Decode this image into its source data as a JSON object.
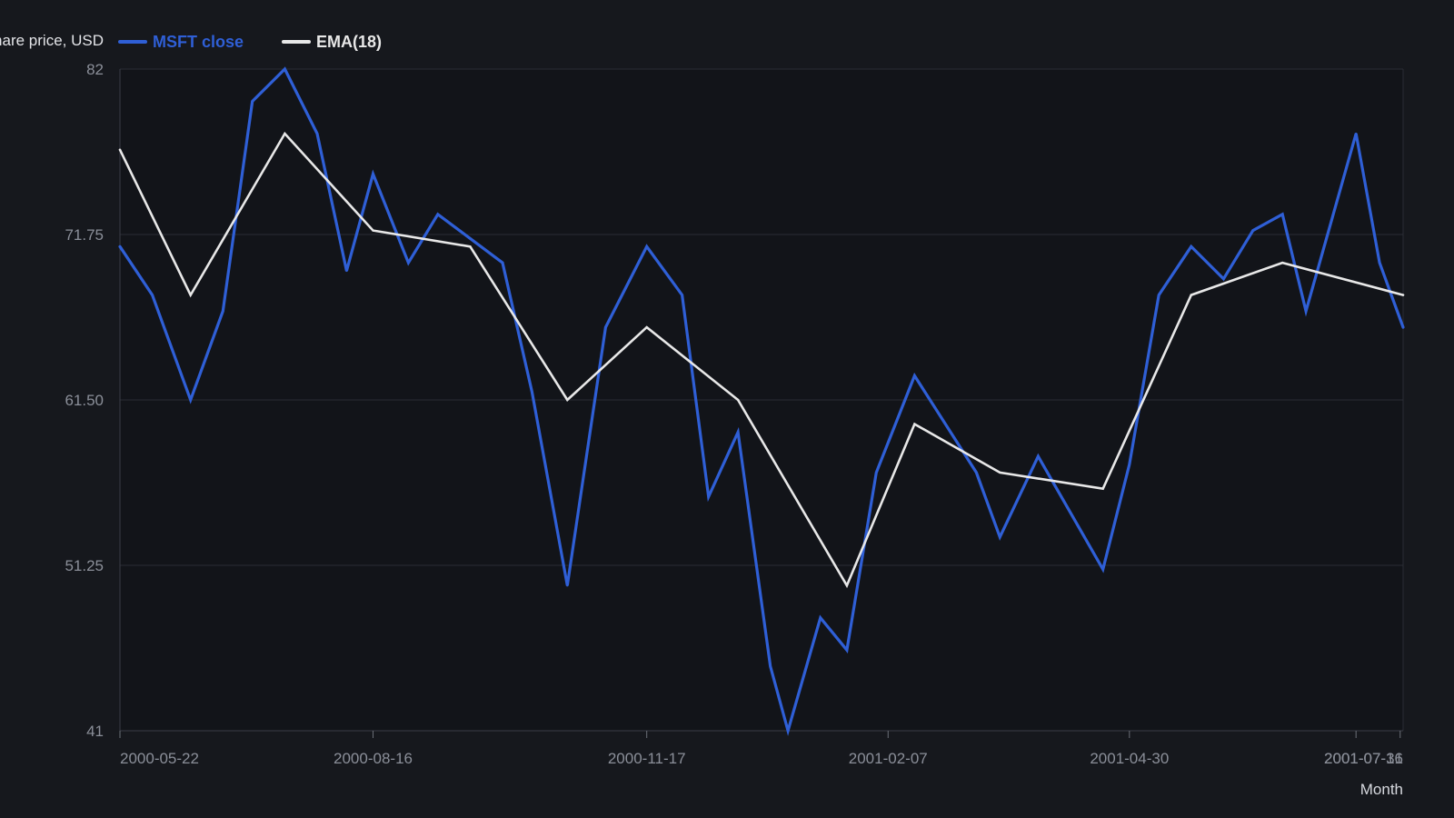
{
  "chart_data": {
    "type": "line",
    "ylabel": "Share price, USD",
    "xlabel": "Month",
    "ylim": [
      41,
      82
    ],
    "yticks": [
      "41",
      "51.25",
      "61.50",
      "71.75",
      "82"
    ],
    "xticks": [
      {
        "date": "2000-05-22",
        "label": "2000-05-22"
      },
      {
        "date": "2000-08-16",
        "label": "2000-08-16"
      },
      {
        "date": "2000-11-17",
        "label": "2000-11-17"
      },
      {
        "date": "2001-02-07",
        "label": "2001-02-07"
      },
      {
        "date": "2001-04-30",
        "label": "2001-04-30"
      },
      {
        "date": "2001-07-16",
        "label": "2001-07-16"
      },
      {
        "date": "2001-07-31",
        "label": "2001-07-31"
      }
    ],
    "xlim": [
      "2000-05-22",
      "2001-08-01"
    ],
    "legend_position": "top-left",
    "grid": true,
    "series": [
      {
        "name": "MSFT close",
        "color": "#2f5fd6",
        "points": [
          [
            "2000-05-22",
            71.0
          ],
          [
            "2000-06-02",
            68.0
          ],
          [
            "2000-06-15",
            61.5
          ],
          [
            "2000-06-26",
            67.0
          ],
          [
            "2000-07-06",
            80.0
          ],
          [
            "2000-07-17",
            82.0
          ],
          [
            "2000-07-28",
            78.0
          ],
          [
            "2000-08-07",
            69.5
          ],
          [
            "2000-08-16",
            75.5
          ],
          [
            "2000-08-28",
            70.0
          ],
          [
            "2000-09-07",
            73.0
          ],
          [
            "2000-09-29",
            70.0
          ],
          [
            "2000-10-09",
            62.0
          ],
          [
            "2000-10-21",
            50.0
          ],
          [
            "2000-11-03",
            66.0
          ],
          [
            "2000-11-17",
            71.0
          ],
          [
            "2000-11-29",
            68.0
          ],
          [
            "2000-12-08",
            55.5
          ],
          [
            "2000-12-18",
            59.5
          ],
          [
            "2000-12-29",
            45.0
          ],
          [
            "2001-01-04",
            41.0
          ],
          [
            "2001-01-15",
            48.0
          ],
          [
            "2001-01-24",
            46.0
          ],
          [
            "2001-02-03",
            57.0
          ],
          [
            "2001-02-16",
            63.0
          ],
          [
            "2001-03-09",
            57.0
          ],
          [
            "2001-03-17",
            53.0
          ],
          [
            "2001-03-30",
            58.0
          ],
          [
            "2001-04-21",
            51.0
          ],
          [
            "2001-04-30",
            57.5
          ],
          [
            "2001-05-10",
            68.0
          ],
          [
            "2001-05-21",
            71.0
          ],
          [
            "2001-06-01",
            69.0
          ],
          [
            "2001-06-11",
            72.0
          ],
          [
            "2001-06-21",
            73.0
          ],
          [
            "2001-06-29",
            67.0
          ],
          [
            "2001-07-16",
            78.0
          ],
          [
            "2001-07-24",
            70.0
          ],
          [
            "2001-08-01",
            66.0
          ]
        ]
      },
      {
        "name": "EMA(18)",
        "color": "#e8e8e8",
        "points": [
          [
            "2000-05-22",
            77.0
          ],
          [
            "2000-06-15",
            68.0
          ],
          [
            "2000-07-17",
            78.0
          ],
          [
            "2000-08-16",
            72.0
          ],
          [
            "2000-09-18",
            71.0
          ],
          [
            "2000-10-21",
            61.5
          ],
          [
            "2000-11-17",
            66.0
          ],
          [
            "2000-12-18",
            61.5
          ],
          [
            "2001-01-24",
            50.0
          ],
          [
            "2001-02-16",
            60.0
          ],
          [
            "2001-03-17",
            57.0
          ],
          [
            "2001-04-21",
            56.0
          ],
          [
            "2001-05-21",
            68.0
          ],
          [
            "2001-06-21",
            70.0
          ],
          [
            "2001-08-01",
            68.0
          ]
        ]
      }
    ]
  }
}
